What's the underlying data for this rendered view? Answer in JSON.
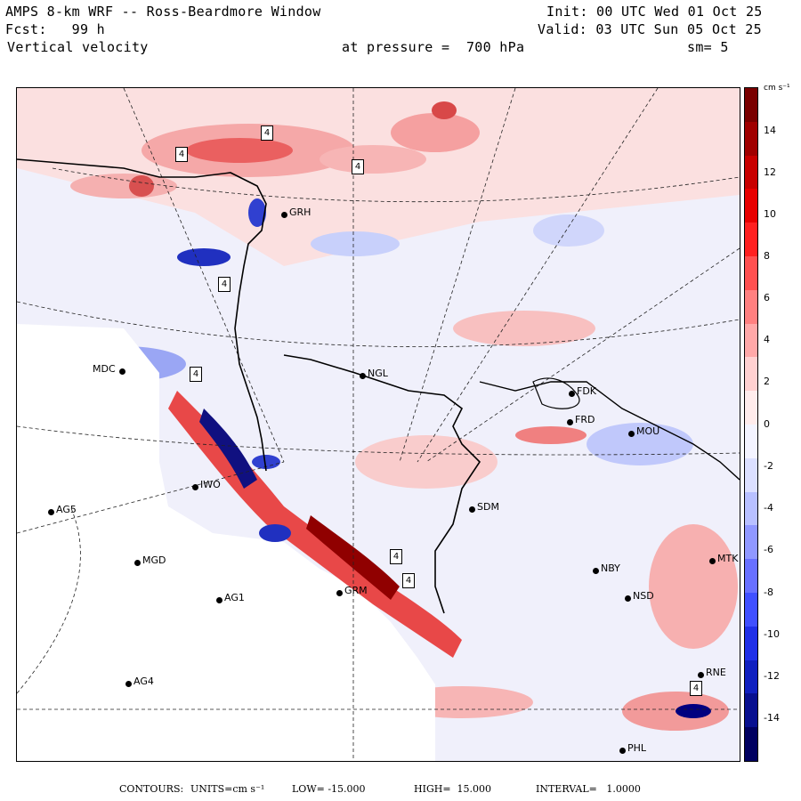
{
  "header": {
    "model": "AMPS 8-km WRF -- Ross-Beardmore Window",
    "init": "Init: 00 UTC Wed 01 Oct 25",
    "forecast": "Fcst:   99 h",
    "valid": "Valid: 03 UTC Sun 05 Oct 25",
    "field": "Vertical velocity",
    "level": "at pressure =  700 hPa",
    "smoothing": "sm= 5"
  },
  "colorbar": {
    "unit": "cm s⁻¹",
    "ticks": [
      "14",
      "12",
      "10",
      "8",
      "6",
      "4",
      "2",
      "0",
      "-2",
      "-4",
      "-6",
      "-8",
      "-10",
      "-12",
      "-14"
    ],
    "colors": [
      "#7a0000",
      "#a00000",
      "#c80000",
      "#e80000",
      "#ff2020",
      "#ff5050",
      "#ff8080",
      "#ffa8a8",
      "#ffd0d0",
      "#ffecec",
      "#f4f4ff",
      "#dce0ff",
      "#b8c0ff",
      "#9098ff",
      "#6870ff",
      "#4050ff",
      "#2030e8",
      "#1020c0",
      "#081090",
      "#000060"
    ]
  },
  "stations": [
    {
      "code": "GRH"
    },
    {
      "code": "MDC"
    },
    {
      "code": "NGL"
    },
    {
      "code": "FDK"
    },
    {
      "code": "FRD"
    },
    {
      "code": "MOU"
    },
    {
      "code": "IWO"
    },
    {
      "code": "AG5"
    },
    {
      "code": "SDM"
    },
    {
      "code": "MGD"
    },
    {
      "code": "NBY"
    },
    {
      "code": "MTK"
    },
    {
      "code": "AG1"
    },
    {
      "code": "GRM"
    },
    {
      "code": "NSD"
    },
    {
      "code": "AG4"
    },
    {
      "code": "RNE"
    },
    {
      "code": "PHL"
    }
  ],
  "contour_labels": [
    "4",
    "4",
    "4",
    "4",
    "4",
    "4",
    "4",
    "4"
  ],
  "footer": {
    "contours_label": "CONTOURS:",
    "units_label": "UNITS=cm s⁻¹",
    "low": "LOW= -15.000",
    "high": "HIGH=  15.000",
    "interval": "INTERVAL=   1.0000"
  }
}
